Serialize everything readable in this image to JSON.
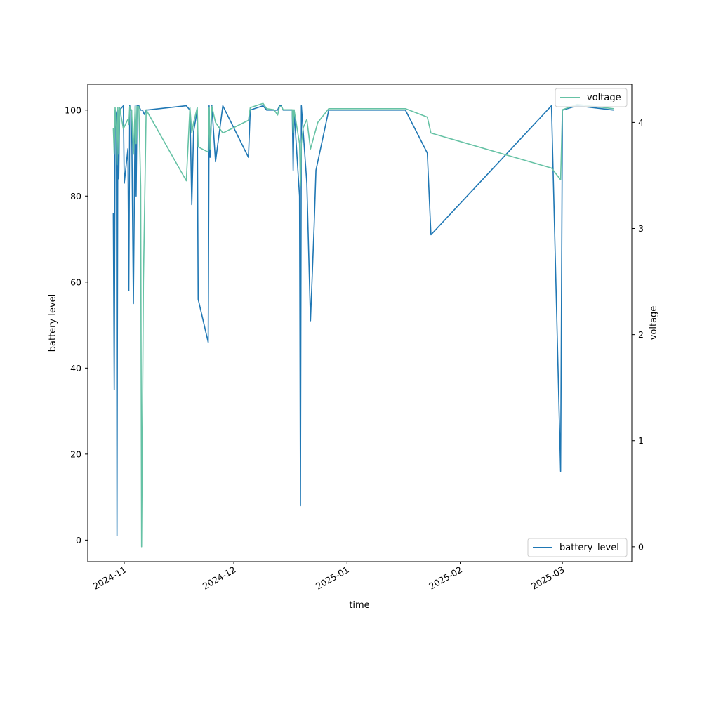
{
  "chart_data": {
    "type": "line",
    "xlabel": "time",
    "ylabel": "battery level",
    "y2label": "voltage",
    "x_range": [
      "2024-10-22",
      "2025-03-20"
    ],
    "ylim": [
      -5,
      106
    ],
    "y2lim": [
      -0.14,
      4.36
    ],
    "x_ticks": [
      {
        "date": "2024-11-01",
        "label": "2024-11"
      },
      {
        "date": "2024-12-01",
        "label": "2024-12"
      },
      {
        "date": "2025-01-01",
        "label": "2025-01"
      },
      {
        "date": "2025-02-01",
        "label": "2025-02"
      },
      {
        "date": "2025-03-01",
        "label": "2025-03"
      }
    ],
    "y_ticks": [
      0,
      20,
      40,
      60,
      80,
      100
    ],
    "y2_ticks": [
      0,
      1,
      2,
      3,
      4
    ],
    "grid": false,
    "series": [
      {
        "name": "battery_level",
        "axis": "left",
        "color": "#1f77b4",
        "legend_position": "lower-right",
        "points": [
          [
            "2024-10-29",
            76
          ],
          [
            "2024-10-29 06:00",
            35
          ],
          [
            "2024-10-29 12:00",
            100
          ],
          [
            "2024-10-29 20:00",
            99
          ],
          [
            "2024-10-30 00:00",
            1
          ],
          [
            "2024-10-30 06:00",
            100
          ],
          [
            "2024-10-30 12:00",
            84
          ],
          [
            "2024-10-30 18:00",
            100
          ],
          [
            "2024-10-31 18:00",
            101
          ],
          [
            "2024-11-01",
            83
          ],
          [
            "2024-11-02",
            91
          ],
          [
            "2024-11-02 06:00",
            58
          ],
          [
            "2024-11-02 12:00",
            101
          ],
          [
            "2024-11-02 18:00",
            100
          ],
          [
            "2024-11-03",
            100
          ],
          [
            "2024-11-03 12:00",
            55
          ],
          [
            "2024-11-04",
            101
          ],
          [
            "2024-11-04 06:00",
            80
          ],
          [
            "2024-11-04 12:00",
            101
          ],
          [
            "2024-11-05",
            101
          ],
          [
            "2024-11-05 12:00",
            100
          ],
          [
            "2024-11-06",
            100
          ],
          [
            "2024-11-06 12:00",
            99
          ],
          [
            "2024-11-07",
            100
          ],
          [
            "2024-11-18",
            101
          ],
          [
            "2024-11-19",
            100
          ],
          [
            "2024-11-19 12:00",
            78
          ],
          [
            "2024-11-20",
            95
          ],
          [
            "2024-11-21",
            100
          ],
          [
            "2024-11-21 06:00",
            56
          ],
          [
            "2024-11-24",
            46
          ],
          [
            "2024-11-24 06:00",
            101
          ],
          [
            "2024-11-24 12:00",
            89
          ],
          [
            "2024-11-25",
            101
          ],
          [
            "2024-11-26",
            88
          ],
          [
            "2024-11-28",
            101
          ],
          [
            "2024-12-05",
            89
          ],
          [
            "2024-12-05 12:00",
            100
          ],
          [
            "2024-12-09",
            101
          ],
          [
            "2024-12-10",
            100
          ],
          [
            "2024-12-13",
            100
          ],
          [
            "2024-12-13 12:00",
            101
          ],
          [
            "2024-12-14",
            101
          ],
          [
            "2024-12-14 12:00",
            100
          ],
          [
            "2024-12-17",
            100
          ],
          [
            "2024-12-17 06:00",
            86
          ],
          [
            "2024-12-17 12:00",
            100
          ],
          [
            "2024-12-19",
            80
          ],
          [
            "2024-12-19 06:00",
            8
          ],
          [
            "2024-12-19 12:00",
            101
          ],
          [
            "2024-12-21",
            83
          ],
          [
            "2024-12-22",
            51
          ],
          [
            "2024-12-23",
            73
          ],
          [
            "2024-12-23 12:00",
            86
          ],
          [
            "2024-12-27",
            100
          ],
          [
            "2025-01-17",
            100
          ],
          [
            "2025-01-23",
            90
          ],
          [
            "2025-01-24",
            71
          ],
          [
            "2025-02-26",
            101
          ],
          [
            "2025-02-28 12:00",
            16
          ],
          [
            "2025-03-01",
            100
          ],
          [
            "2025-03-05",
            101
          ],
          [
            "2025-03-15",
            100
          ]
        ]
      },
      {
        "name": "voltage",
        "axis": "right",
        "color": "#66c2a5",
        "legend_position": "upper-right",
        "points": [
          [
            "2024-10-29",
            3.95
          ],
          [
            "2024-10-29 06:00",
            3.7
          ],
          [
            "2024-10-29 12:00",
            4.14
          ],
          [
            "2024-10-29 20:00",
            3.9
          ],
          [
            "2024-10-30 00:00",
            3.6
          ],
          [
            "2024-10-30 06:00",
            4.14
          ],
          [
            "2024-10-30 12:00",
            3.7
          ],
          [
            "2024-10-30 18:00",
            4.14
          ],
          [
            "2024-10-31 18:00",
            3.94
          ],
          [
            "2024-11-02",
            4.03
          ],
          [
            "2024-11-02 06:00",
            3.98
          ],
          [
            "2024-11-02 12:00",
            4.15
          ],
          [
            "2024-11-02 18:00",
            4.12
          ],
          [
            "2024-11-03",
            4.12
          ],
          [
            "2024-11-03 12:00",
            3.7
          ],
          [
            "2024-11-04",
            4.15
          ],
          [
            "2024-11-04 06:00",
            3.8
          ],
          [
            "2024-11-04 12:00",
            4.15
          ],
          [
            "2024-11-05",
            4.15
          ],
          [
            "2024-11-05 12:00",
            3.4
          ],
          [
            "2024-11-05 18:00",
            0.0
          ],
          [
            "2024-11-06 06:00",
            2.5
          ],
          [
            "2024-11-07",
            4.12
          ],
          [
            "2024-11-18",
            3.45
          ],
          [
            "2024-11-19",
            4.14
          ],
          [
            "2024-11-19 12:00",
            3.9
          ],
          [
            "2024-11-20",
            4.0
          ],
          [
            "2024-11-21",
            4.14
          ],
          [
            "2024-11-21 06:00",
            3.77
          ],
          [
            "2024-11-24",
            3.72
          ],
          [
            "2024-11-24 06:00",
            4.14
          ],
          [
            "2024-11-24 12:00",
            3.75
          ],
          [
            "2024-11-25",
            4.15
          ],
          [
            "2024-11-26",
            4.0
          ],
          [
            "2024-11-28",
            3.9
          ],
          [
            "2024-12-05",
            4.02
          ],
          [
            "2024-12-05 12:00",
            4.14
          ],
          [
            "2024-12-09",
            4.18
          ],
          [
            "2024-12-10",
            4.13
          ],
          [
            "2024-12-12",
            4.12
          ],
          [
            "2024-12-13",
            4.07
          ],
          [
            "2024-12-13 12:00",
            4.15
          ],
          [
            "2024-12-14",
            4.15
          ],
          [
            "2024-12-14 12:00",
            4.12
          ],
          [
            "2024-12-17",
            4.12
          ],
          [
            "2024-12-17 06:00",
            3.9
          ],
          [
            "2024-12-17 12:00",
            4.12
          ],
          [
            "2024-12-19",
            3.8
          ],
          [
            "2024-12-19 06:00",
            3.4
          ],
          [
            "2024-12-19 12:00",
            3.8
          ],
          [
            "2024-12-20",
            3.95
          ],
          [
            "2024-12-21",
            4.03
          ],
          [
            "2024-12-22",
            3.75
          ],
          [
            "2024-12-24",
            4.0
          ],
          [
            "2024-12-27",
            4.13
          ],
          [
            "2025-01-17",
            4.13
          ],
          [
            "2025-01-23",
            4.05
          ],
          [
            "2025-01-24",
            3.9
          ],
          [
            "2025-02-26",
            3.57
          ],
          [
            "2025-02-28 12:00",
            3.46
          ],
          [
            "2025-03-01",
            4.12
          ],
          [
            "2025-03-05",
            4.17
          ],
          [
            "2025-03-15",
            4.13
          ]
        ]
      }
    ]
  }
}
